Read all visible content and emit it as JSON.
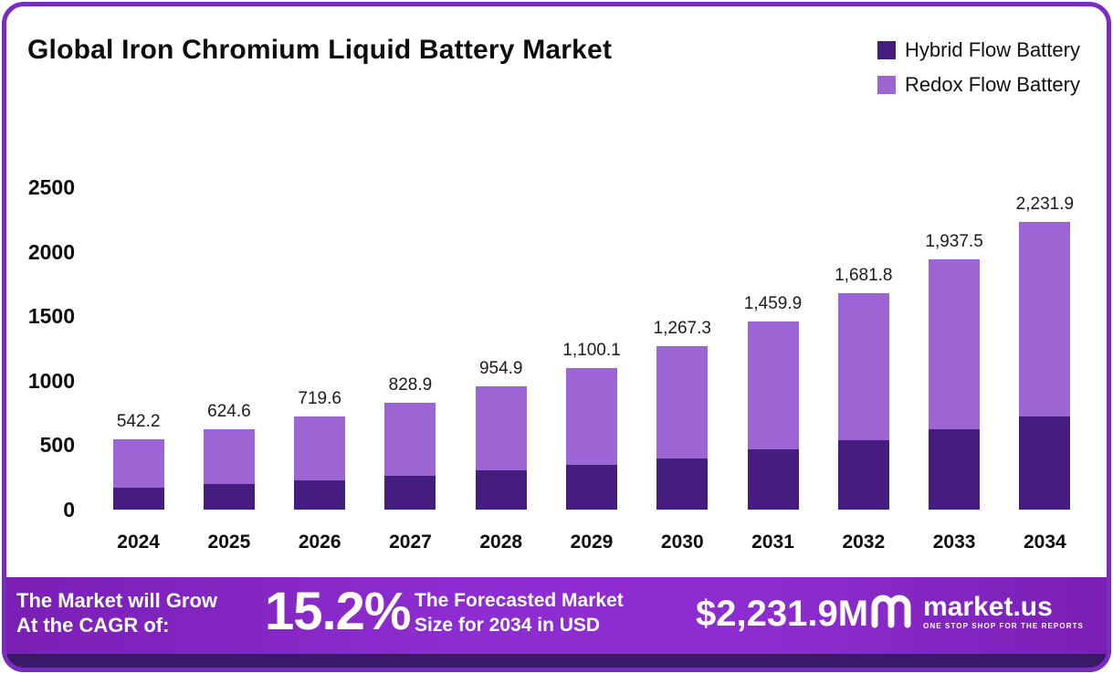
{
  "title": "Global Iron Chromium Liquid Battery Market",
  "colors": {
    "hybrid": "#451d7e",
    "redox": "#9d64d4",
    "banner": "#8d2cd0",
    "border": "#7c2bbf",
    "strip": "#3a1a66"
  },
  "legend": {
    "items": [
      {
        "label": "Hybrid Flow Battery",
        "color": "#451d7e"
      },
      {
        "label": "Redox Flow Battery",
        "color": "#9d64d4"
      }
    ]
  },
  "chart_data": {
    "type": "bar",
    "stacked": true,
    "title": "Global Iron Chromium Liquid Battery Market",
    "categories": [
      "2024",
      "2025",
      "2026",
      "2027",
      "2028",
      "2029",
      "2030",
      "2031",
      "2032",
      "2033",
      "2034"
    ],
    "series": [
      {
        "name": "Hybrid Flow Battery",
        "color": "#451d7e",
        "values": [
          170,
          195,
          228,
          262,
          305,
          350,
          400,
          465,
          535,
          620,
          725
        ]
      },
      {
        "name": "Redox Flow Battery",
        "color": "#9d64d4",
        "values": [
          372.2,
          429.6,
          491.6,
          566.9,
          649.9,
          750.1,
          867.3,
          994.9,
          1146.8,
          1317.5,
          1506.9
        ]
      }
    ],
    "totals": [
      542.2,
      624.6,
      719.6,
      828.9,
      954.9,
      1100.1,
      1267.3,
      1459.9,
      1681.8,
      1937.5,
      2231.9
    ],
    "total_labels": [
      "542.2",
      "624.6",
      "719.6",
      "828.9",
      "954.9",
      "1,100.1",
      "1,267.3",
      "1,459.9",
      "1,681.8",
      "1,937.5",
      "2,231.9"
    ],
    "xlabel": "",
    "ylabel": "",
    "ylim": [
      0,
      2500
    ],
    "yticks": [
      0,
      500,
      1000,
      1500,
      2000,
      2500
    ],
    "grid": false,
    "legend_position": "top-right"
  },
  "banner": {
    "grow_line1": "The Market will Grow",
    "grow_line2": "At the CAGR of:",
    "cagr": "15.2%",
    "forecast_line1": "The Forecasted Market",
    "forecast_line2": "Size for 2034 in USD",
    "forecast_value": "$2,231.9M",
    "brand": "market.us",
    "tagline": "ONE STOP SHOP FOR THE REPORTS"
  }
}
